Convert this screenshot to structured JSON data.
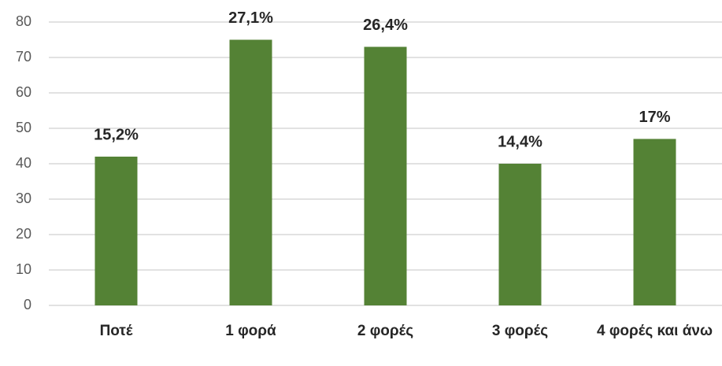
{
  "chart_data": {
    "type": "bar",
    "categories": [
      "Ποτέ",
      "1 φορά",
      "2 φορές",
      "3 φορές",
      "4 φορές και άνω"
    ],
    "values": [
      42,
      75,
      73,
      40,
      47
    ],
    "annotations": [
      "15,2%",
      "27,1%",
      "26,4%",
      "14,4%",
      "17%"
    ],
    "color": "#548235",
    "ylim": [
      0,
      80
    ],
    "yticks": [
      0,
      10,
      20,
      30,
      40,
      50,
      60,
      70,
      80
    ],
    "grid": true
  }
}
